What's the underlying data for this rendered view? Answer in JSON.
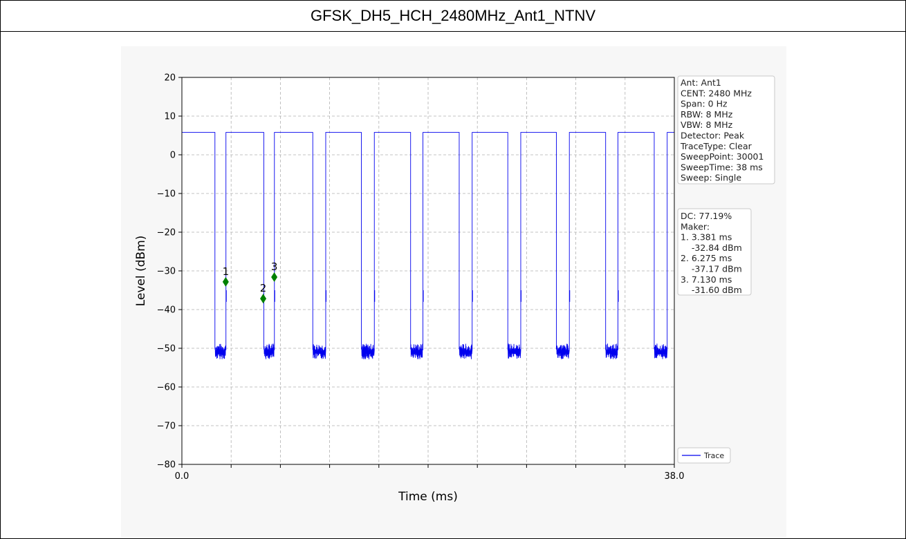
{
  "title": "GFSK_DH5_HCH_2480MHz_Ant1_NTNV",
  "chart_data": {
    "type": "line",
    "xlabel": "Time (ms)",
    "ylabel": "Level (dBm)",
    "xlim": [
      0.0,
      38.0
    ],
    "ylim": [
      -80,
      20
    ],
    "x_tick_labels": [
      "0.0",
      "38.0"
    ],
    "y_ticks": [
      20,
      10,
      0,
      -10,
      -20,
      -30,
      -40,
      -50,
      -60,
      -70,
      -80
    ],
    "y_tick_labels": [
      "20",
      "10",
      "0",
      "−10",
      "−20",
      "−30",
      "−40",
      "−50",
      "−60",
      "−70",
      "−80"
    ],
    "grid": true,
    "legend": {
      "placement": "lower-right",
      "entries": [
        "Trace"
      ]
    },
    "series": [
      {
        "name": "Trace",
        "color": "#0000ee",
        "on_level_dbm": 5.8,
        "off_level_dbm": -51,
        "bursts_ms": [
          [
            0.0,
            2.55
          ],
          [
            3.4,
            6.32
          ],
          [
            7.14,
            10.1
          ],
          [
            11.1,
            13.85
          ],
          [
            14.85,
            17.65
          ],
          [
            18.6,
            21.4
          ],
          [
            22.4,
            25.15
          ],
          [
            26.15,
            28.9
          ],
          [
            29.9,
            32.7
          ],
          [
            33.65,
            36.45
          ],
          [
            37.45,
            38.0
          ]
        ]
      }
    ],
    "markers": [
      {
        "label": "1",
        "x_ms": 3.381,
        "y_dbm": -32.84
      },
      {
        "label": "2",
        "x_ms": 6.275,
        "y_dbm": -37.17
      },
      {
        "label": "3",
        "x_ms": 7.13,
        "y_dbm": -31.6
      }
    ],
    "marker_color": "#008000"
  },
  "info_box": {
    "lines": [
      "Ant: Ant1",
      "CENT: 2480 MHz",
      "Span: 0 Hz",
      "RBW: 8 MHz",
      "VBW: 8 MHz",
      "Detector: Peak",
      "TraceType: Clear",
      "SweepPoint: 30001",
      "SweepTime: 38 ms",
      "Sweep: Single"
    ]
  },
  "marker_box": {
    "lines": [
      "DC: 77.19%",
      "Maker:",
      "1. 3.381 ms",
      "    -32.84 dBm",
      "2. 6.275 ms",
      "    -37.17 dBm",
      "3. 7.130 ms",
      "    -31.60 dBm"
    ]
  }
}
